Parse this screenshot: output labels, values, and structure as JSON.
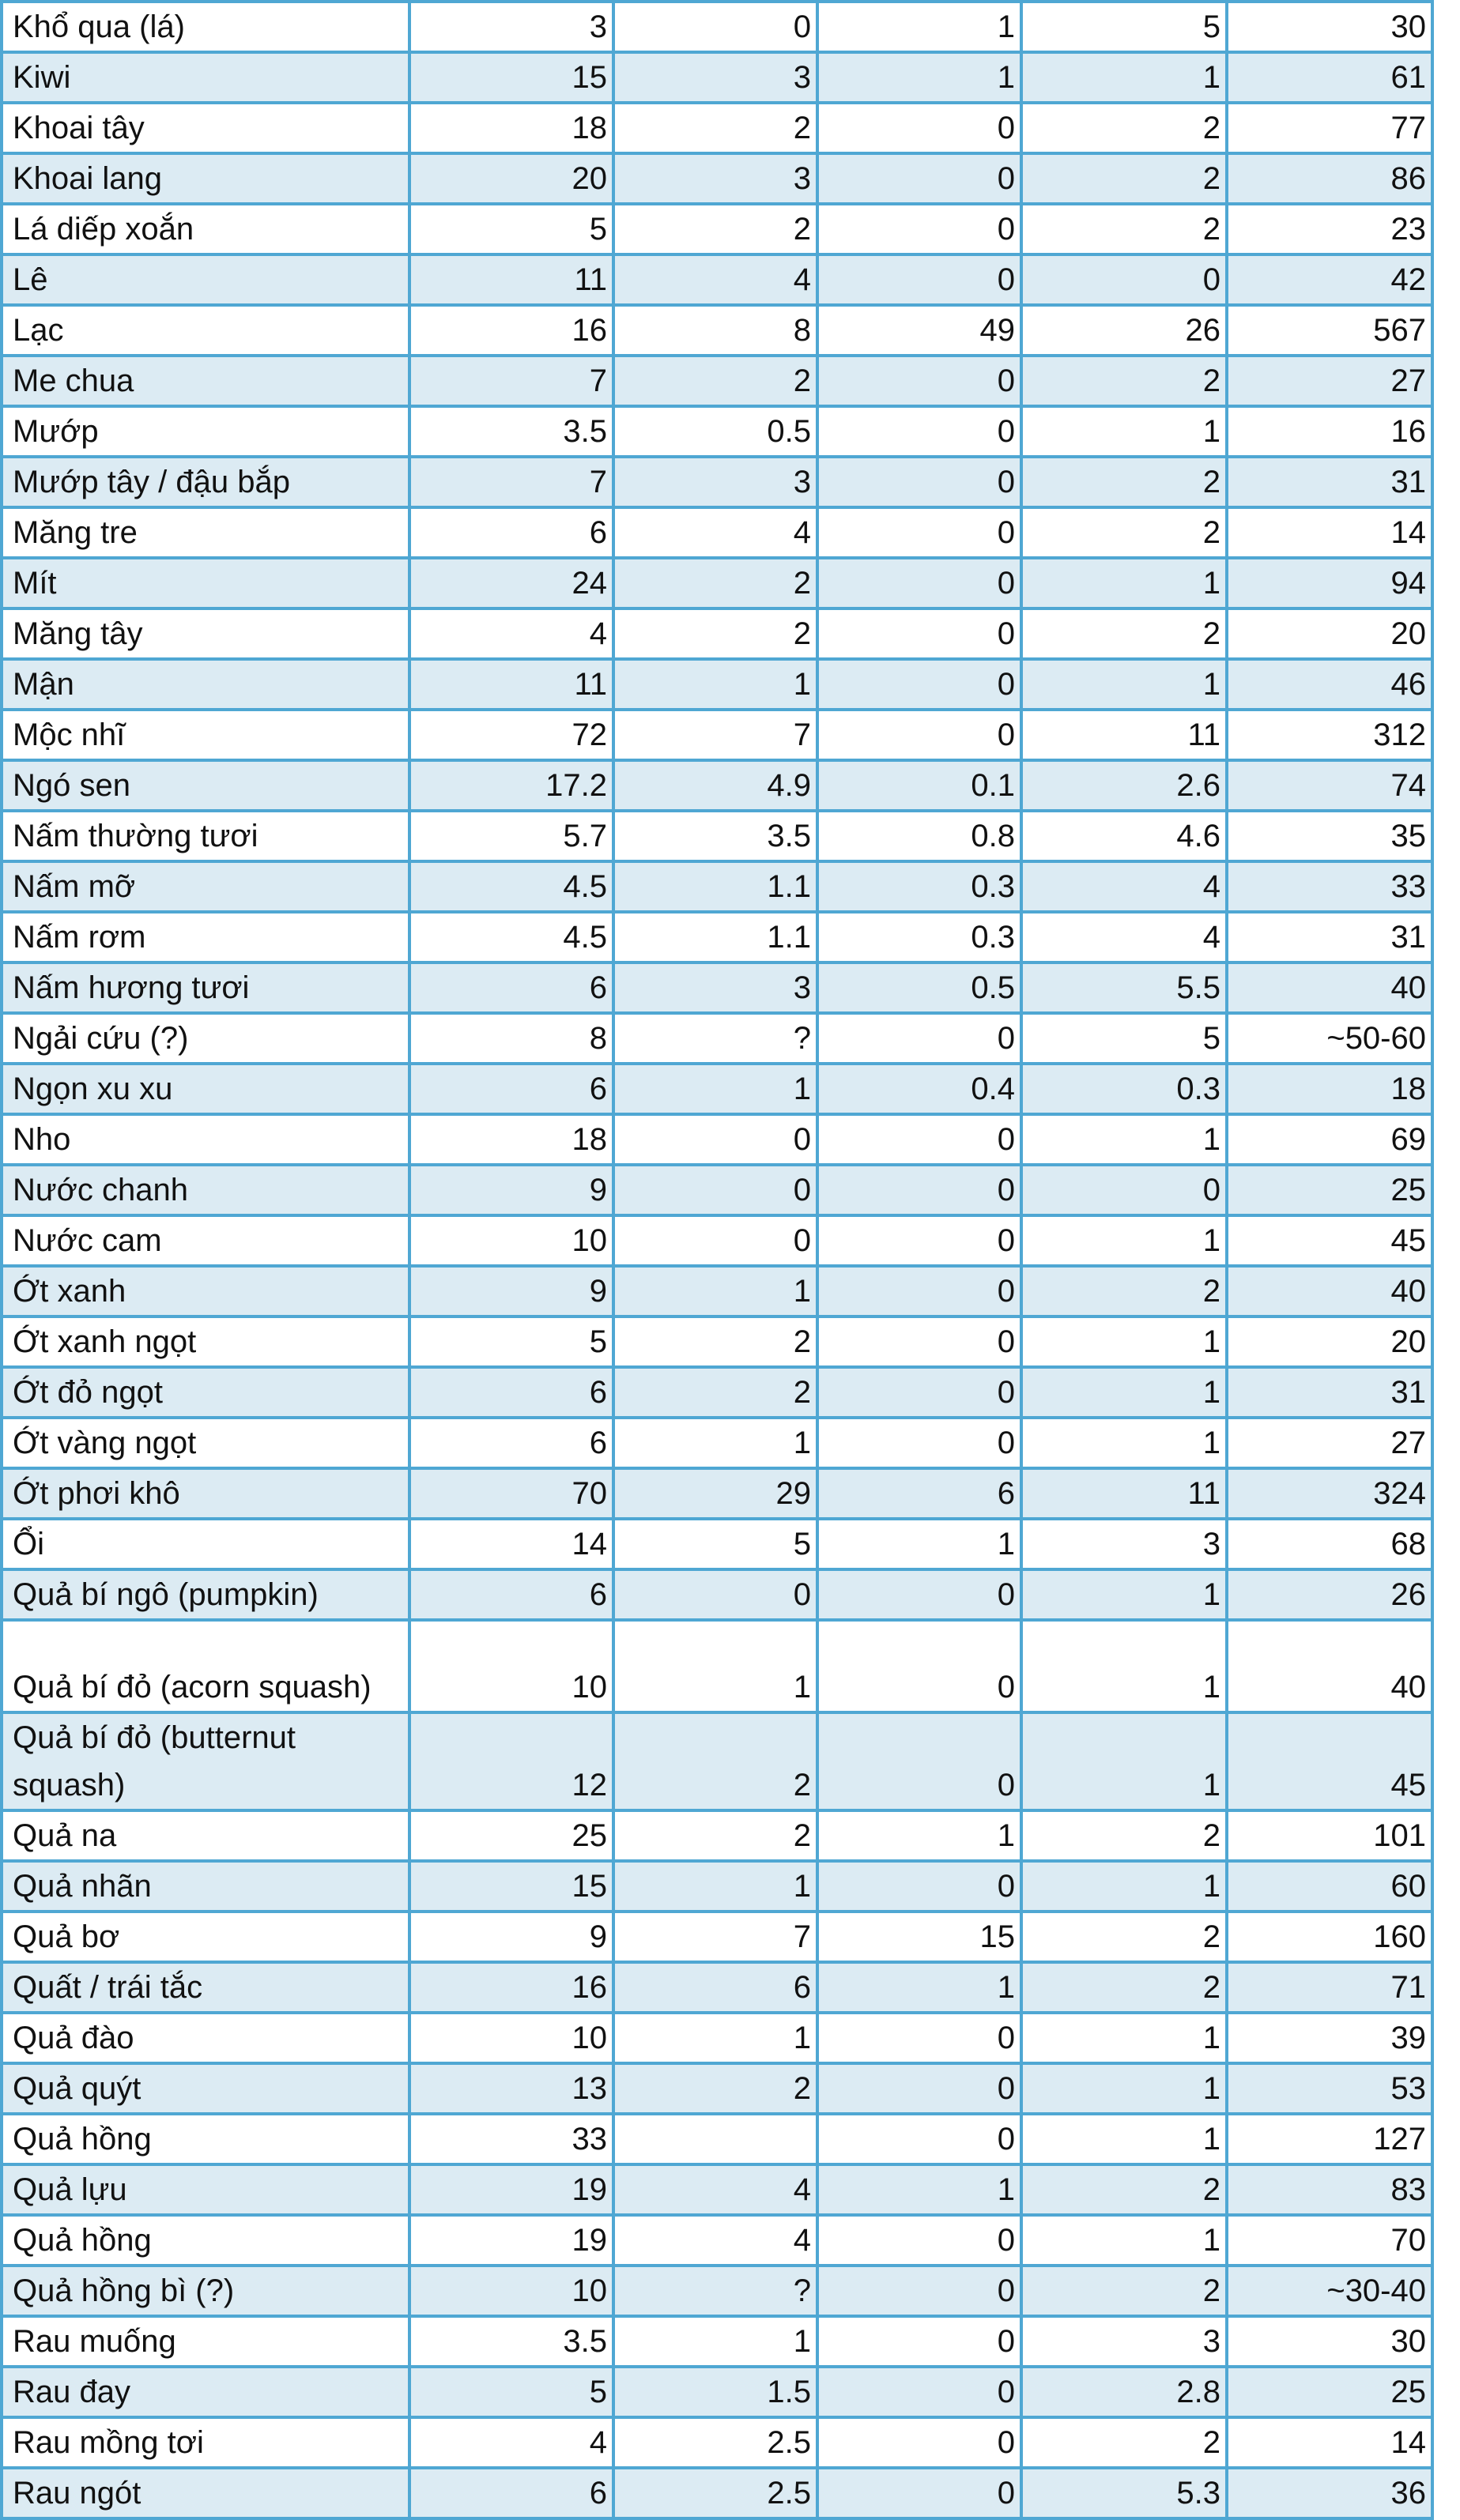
{
  "rows": [
    {
      "name": "Khổ qua (lá)",
      "v": [
        "3",
        "0",
        "1",
        "5",
        "30"
      ]
    },
    {
      "name": "Kiwi",
      "v": [
        "15",
        "3",
        "1",
        "1",
        "61"
      ]
    },
    {
      "name": "Khoai tây",
      "v": [
        "18",
        "2",
        "0",
        "2",
        "77"
      ]
    },
    {
      "name": "Khoai lang",
      "v": [
        "20",
        "3",
        "0",
        "2",
        "86"
      ]
    },
    {
      "name": "Lá diếp xoắn",
      "v": [
        "5",
        "2",
        "0",
        "2",
        "23"
      ]
    },
    {
      "name": "Lê",
      "v": [
        "11",
        "4",
        "0",
        "0",
        "42"
      ]
    },
    {
      "name": "Lạc",
      "v": [
        "16",
        "8",
        "49",
        "26",
        "567"
      ]
    },
    {
      "name": "Me chua",
      "v": [
        "7",
        "2",
        "0",
        "2",
        "27"
      ]
    },
    {
      "name": "Mướp",
      "v": [
        "3.5",
        "0.5",
        "0",
        "1",
        "16"
      ]
    },
    {
      "name": "Mướp tây / đậu bắp",
      "v": [
        "7",
        "3",
        "0",
        "2",
        "31"
      ]
    },
    {
      "name": "Măng tre",
      "v": [
        "6",
        "4",
        "0",
        "2",
        "14"
      ]
    },
    {
      "name": "Mít",
      "v": [
        "24",
        "2",
        "0",
        "1",
        "94"
      ]
    },
    {
      "name": "Măng tây",
      "v": [
        "4",
        "2",
        "0",
        "2",
        "20"
      ]
    },
    {
      "name": "Mận",
      "v": [
        "11",
        "1",
        "0",
        "1",
        "46"
      ]
    },
    {
      "name": "Mộc nhĩ",
      "v": [
        "72",
        "7",
        "0",
        "11",
        "312"
      ]
    },
    {
      "name": "Ngó sen",
      "v": [
        "17.2",
        "4.9",
        "0.1",
        "2.6",
        "74"
      ]
    },
    {
      "name": "Nấm thường tươi",
      "v": [
        "5.7",
        "3.5",
        "0.8",
        "4.6",
        "35"
      ]
    },
    {
      "name": "Nấm mỡ",
      "v": [
        "4.5",
        "1.1",
        "0.3",
        "4",
        "33"
      ]
    },
    {
      "name": "Nấm rơm",
      "v": [
        "4.5",
        "1.1",
        "0.3",
        "4",
        "31"
      ]
    },
    {
      "name": "Nấm hương tươi",
      "v": [
        "6",
        "3",
        "0.5",
        "5.5",
        "40"
      ]
    },
    {
      "name": "Ngải cứu (?)",
      "v": [
        "8",
        "?",
        "0",
        "5",
        "~50-60"
      ]
    },
    {
      "name": "Ngọn xu xu",
      "v": [
        "6",
        "1",
        "0.4",
        "0.3",
        "18"
      ]
    },
    {
      "name": "Nho",
      "v": [
        "18",
        "0",
        "0",
        "1",
        "69"
      ]
    },
    {
      "name": "Nước chanh",
      "v": [
        "9",
        "0",
        "0",
        "0",
        "25"
      ]
    },
    {
      "name": "Nước cam",
      "v": [
        "10",
        "0",
        "0",
        "1",
        "45"
      ]
    },
    {
      "name": "Ớt xanh",
      "v": [
        "9",
        "1",
        "0",
        "2",
        "40"
      ]
    },
    {
      "name": "Ớt xanh ngọt",
      "v": [
        "5",
        "2",
        "0",
        "1",
        "20"
      ]
    },
    {
      "name": "Ớt đỏ ngọt",
      "v": [
        "6",
        "2",
        "0",
        "1",
        "31"
      ]
    },
    {
      "name": "Ớt vàng ngọt",
      "v": [
        "6",
        "1",
        "0",
        "1",
        "27"
      ]
    },
    {
      "name": "Ớt phơi khô",
      "v": [
        "70",
        "29",
        "6",
        "11",
        "324"
      ]
    },
    {
      "name": "Ổi",
      "v": [
        "14",
        "5",
        "1",
        "3",
        "68"
      ]
    },
    {
      "name": "Quả bí ngô (pumpkin)",
      "v": [
        "6",
        "0",
        "0",
        "1",
        "26"
      ]
    },
    {
      "name": "Quả bí đỏ (acorn squash)",
      "v": [
        "10",
        "1",
        "0",
        "1",
        "40"
      ]
    },
    {
      "name": "Quả bí đỏ (butternut squash)",
      "v": [
        "12",
        "2",
        "0",
        "1",
        "45"
      ]
    },
    {
      "name": "Quả na",
      "v": [
        "25",
        "2",
        "1",
        "2",
        "101"
      ]
    },
    {
      "name": "Quả nhãn",
      "v": [
        "15",
        "1",
        "0",
        "1",
        "60"
      ]
    },
    {
      "name": "Quả bơ",
      "v": [
        "9",
        "7",
        "15",
        "2",
        "160"
      ]
    },
    {
      "name": "Quất / trái tắc",
      "v": [
        "16",
        "6",
        "1",
        "2",
        "71"
      ]
    },
    {
      "name": "Quả đào",
      "v": [
        "10",
        "1",
        "0",
        "1",
        "39"
      ]
    },
    {
      "name": "Quả quýt",
      "v": [
        "13",
        "2",
        "0",
        "1",
        "53"
      ]
    },
    {
      "name": "Quả hồng",
      "v": [
        "33",
        "",
        "0",
        "1",
        "127"
      ]
    },
    {
      "name": "Quả lựu",
      "v": [
        "19",
        "4",
        "1",
        "2",
        "83"
      ]
    },
    {
      "name": "Quả hồng",
      "v": [
        "19",
        "4",
        "0",
        "1",
        "70"
      ]
    },
    {
      "name": "Quả hồng bì (?)",
      "v": [
        "10",
        "?",
        "0",
        "2",
        "~30-40"
      ]
    },
    {
      "name": "Rau muống",
      "v": [
        "3.5",
        "1",
        "0",
        "3",
        "30"
      ]
    },
    {
      "name": "Rau đay",
      "v": [
        "5",
        "1.5",
        "0",
        "2.8",
        "25"
      ]
    },
    {
      "name": "Rau mồng tơi",
      "v": [
        "4",
        "2.5",
        "0",
        "2",
        "14"
      ]
    },
    {
      "name": "Rau ngót",
      "v": [
        "6",
        "2.5",
        "0",
        "5.3",
        "36"
      ]
    }
  ]
}
